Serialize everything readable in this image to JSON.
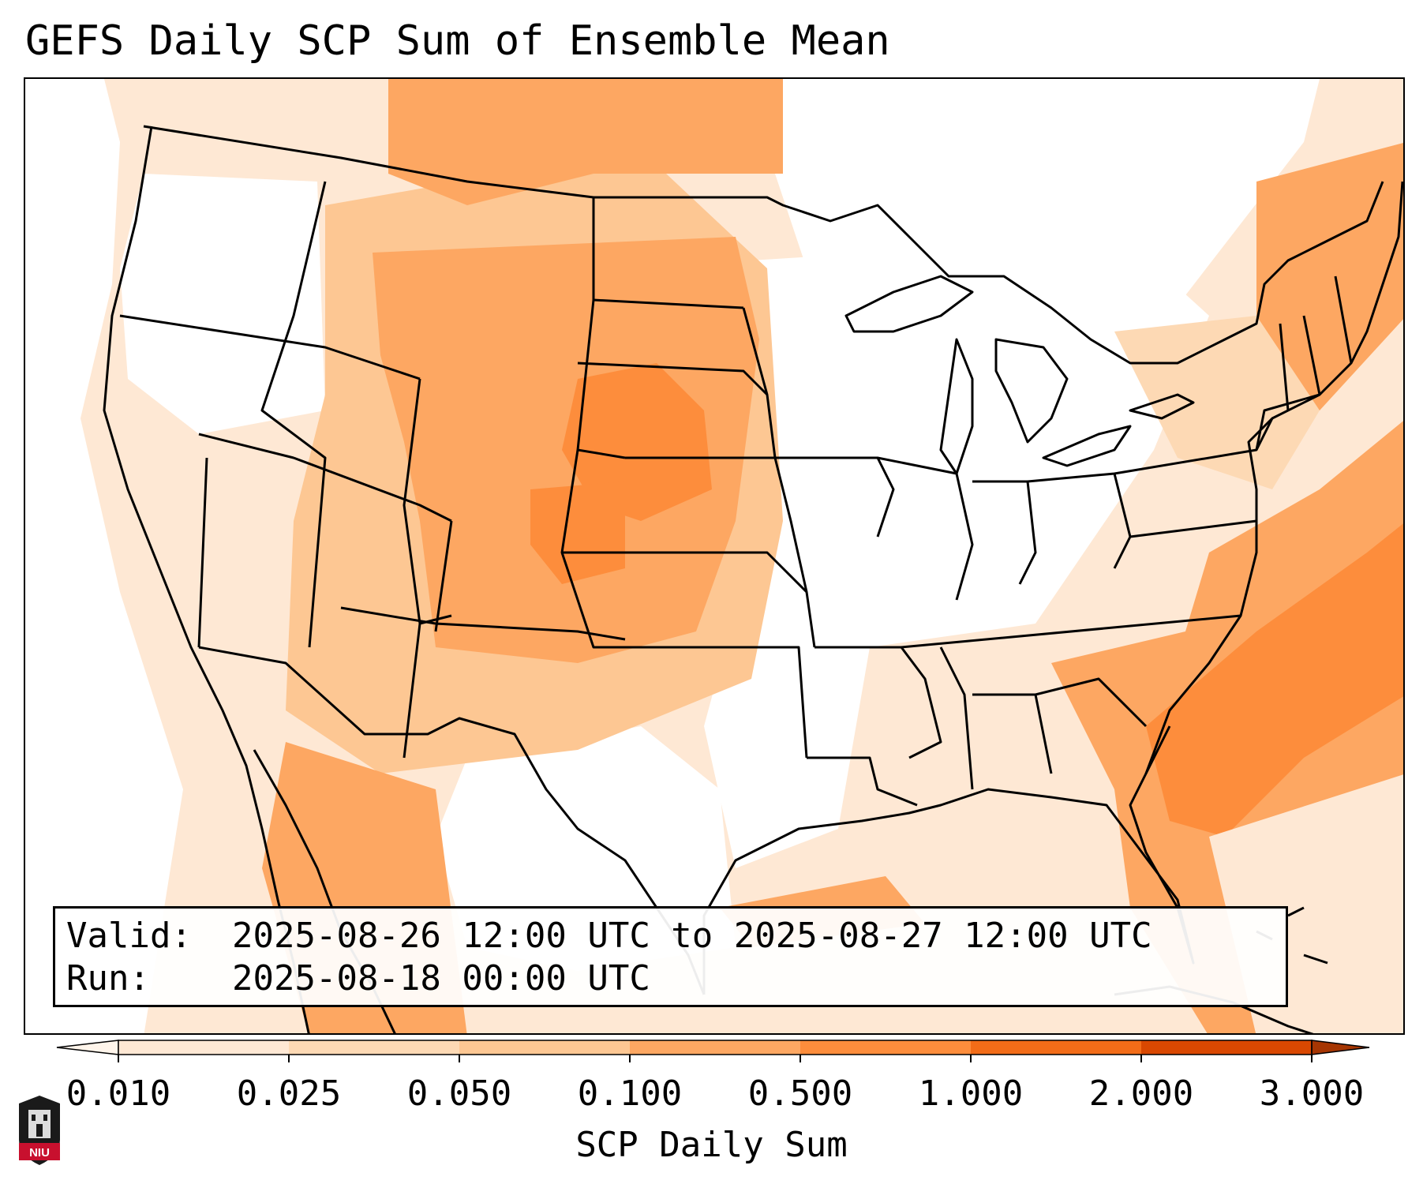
{
  "title": "GEFS Daily SCP Sum of Ensemble Mean",
  "valid_label": "Valid:",
  "valid_value": "2025-08-26 12:00 UTC to 2025-08-27 12:00 UTC",
  "run_label": "Run:",
  "run_value": "2025-08-18 00:00 UTC",
  "colorbar": {
    "label": "SCP Daily Sum",
    "ticks": [
      "0.010",
      "0.025",
      "0.050",
      "0.100",
      "0.500",
      "1.000",
      "2.000",
      "3.000"
    ],
    "colors": [
      "#fee8d4",
      "#fdd9b4",
      "#fdc793",
      "#fda762",
      "#fd8d3c",
      "#f26c18",
      "#d94801"
    ]
  },
  "logo_text": "NIU",
  "colors": {
    "light": "#fee8d4",
    "light2": "#fdd9b4",
    "mid": "#fdc793",
    "orange": "#fda762",
    "dark": "#fd8d3c",
    "darker": "#f26c18"
  }
}
